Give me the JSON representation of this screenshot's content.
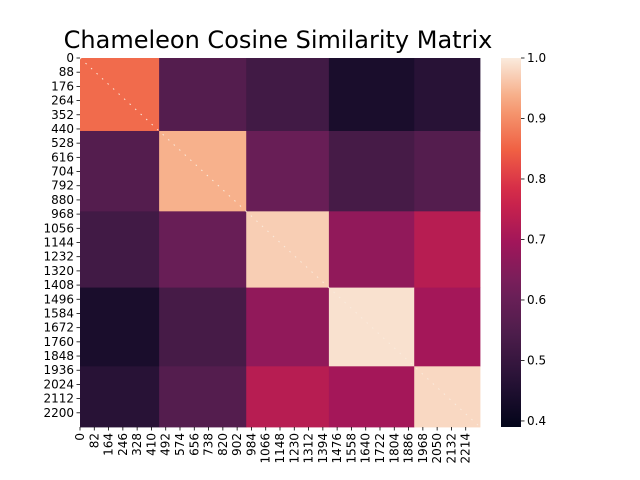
{
  "chart_data": {
    "type": "heatmap",
    "title": "Chameleon Cosine Similarity Matrix",
    "xlabel": "",
    "ylabel": "",
    "n": 2250,
    "block_edges": [
      0,
      445,
      935,
      1400,
      1880,
      2250
    ],
    "block_values": [
      [
        0.86,
        0.56,
        0.52,
        0.44,
        0.47
      ],
      [
        0.56,
        0.94,
        0.6,
        0.53,
        0.56
      ],
      [
        0.52,
        0.6,
        0.97,
        0.67,
        0.73
      ],
      [
        0.44,
        0.53,
        0.67,
        0.99,
        0.7
      ],
      [
        0.47,
        0.56,
        0.73,
        0.7,
        0.98
      ]
    ],
    "diagonal_value": 1.0,
    "y_tick_labels": [
      "0",
      "88",
      "176",
      "264",
      "352",
      "440",
      "528",
      "616",
      "704",
      "792",
      "880",
      "968",
      "1056",
      "1144",
      "1232",
      "1320",
      "1408",
      "1496",
      "1584",
      "1672",
      "1760",
      "1848",
      "1936",
      "2024",
      "2112",
      "2200"
    ],
    "x_tick_labels": [
      "0",
      "82",
      "164",
      "246",
      "328",
      "410",
      "492",
      "574",
      "656",
      "738",
      "820",
      "902",
      "984",
      "1066",
      "1148",
      "1230",
      "1312",
      "1394",
      "1476",
      "1558",
      "1640",
      "1722",
      "1804",
      "1886",
      "1968",
      "2050",
      "2132",
      "2214"
    ],
    "colorbar": {
      "colormap": "rocket",
      "vmin": 0.39,
      "vmax": 1.0,
      "ticks": [
        "0.4",
        "0.5",
        "0.6",
        "0.7",
        "0.8",
        "0.9",
        "1.0"
      ]
    },
    "grid": false,
    "legend": "colorbar-right"
  }
}
